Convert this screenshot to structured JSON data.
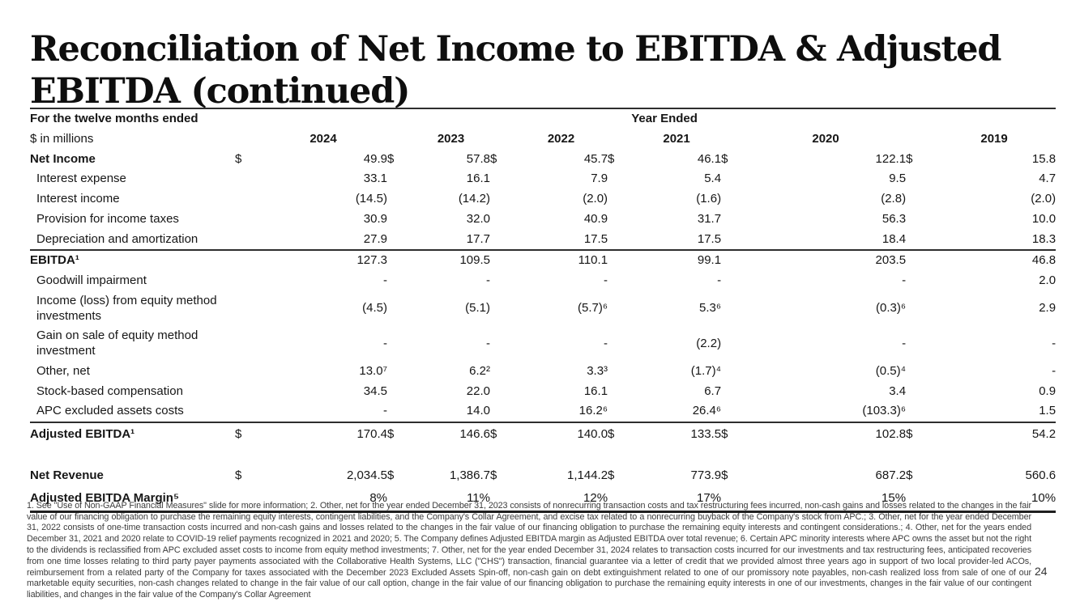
{
  "slide": {
    "title_full": "Reconciliation of Net Income to EBITDA & Adjusted EBITDA (continued)",
    "title_lines": [
      "Reconciliation of Net Income to EBITDA & Adjusted",
      "EBITDA (continued)"
    ],
    "page_number": "24"
  },
  "table": {
    "header": {
      "period_label": "For the twelve months ended",
      "units_label": "$ in millions",
      "year_ended_label": "Year Ended",
      "currency_symbol": "$",
      "years": [
        "2024",
        "2023",
        "2022",
        "2021",
        "2020",
        "2019"
      ]
    },
    "rows": [
      {
        "label": "Net Income",
        "bold": true,
        "dollar": true,
        "values": [
          "49.9",
          "57.8",
          "45.7",
          "46.1",
          "122.1",
          "15.8"
        ]
      },
      {
        "label": "Interest expense",
        "indent": true,
        "values": [
          "33.1",
          "16.1",
          "7.9",
          "5.4",
          "9.5",
          "4.7"
        ]
      },
      {
        "label": "Interest income",
        "indent": true,
        "values": [
          "(14.5)",
          "(14.2)",
          "(2.0)",
          "(1.6)",
          "(2.8)",
          "(2.0)"
        ]
      },
      {
        "label": "Provision for income taxes",
        "indent": true,
        "values": [
          "30.9",
          "32.0",
          "40.9",
          "31.7",
          "56.3",
          "10.0"
        ]
      },
      {
        "label": "Depreciation and amortization",
        "indent": true,
        "values": [
          "27.9",
          "17.7",
          "17.5",
          "17.5",
          "18.4",
          "18.3"
        ]
      },
      {
        "label": "EBITDA¹",
        "bold": true,
        "classes": "rule",
        "values": [
          "127.3",
          "109.5",
          "110.1",
          "99.1",
          "203.5",
          "46.8"
        ]
      },
      {
        "label": "Goodwill impairment",
        "indent": true,
        "values": [
          "-",
          "-",
          "-",
          "-",
          "-",
          "2.0"
        ]
      },
      {
        "label": "Income (loss) from equity method investments",
        "indent": true,
        "values": [
          "(4.5)",
          "(5.1)",
          "(5.7)⁶",
          "5.3⁶",
          "(0.3)⁶",
          "2.9"
        ]
      },
      {
        "label": "Gain on sale of equity method investment",
        "indent": true,
        "values": [
          "-",
          "-",
          "-",
          "(2.2)",
          "-",
          "-"
        ]
      },
      {
        "label": "Other, net",
        "indent": true,
        "values": [
          "13.0⁷",
          "6.2²",
          "3.3³",
          "(1.7)⁴",
          "(0.5)⁴",
          "-"
        ]
      },
      {
        "label": "Stock-based compensation",
        "indent": true,
        "values": [
          "34.5",
          "22.0",
          "16.1",
          "6.7",
          "3.4",
          "0.9"
        ]
      },
      {
        "label": "APC excluded assets costs",
        "indent": true,
        "values": [
          "-",
          "14.0",
          "16.2⁶",
          "26.4⁶",
          "(103.3)⁶",
          "1.5"
        ]
      },
      {
        "label": "Adjusted EBITDA¹",
        "bold": true,
        "dollar": true,
        "classes": "rule total",
        "values": [
          "170.4",
          "146.6",
          "140.0",
          "133.5",
          "102.8",
          "54.2"
        ]
      },
      {
        "type": "spacer"
      },
      {
        "label": "Net Revenue",
        "bold": true,
        "dollar": true,
        "classes": "revenue",
        "values": [
          "2,034.5",
          "1,386.7",
          "1,144.2",
          "773.9",
          "687.2",
          "560.6"
        ]
      },
      {
        "label": "Adjusted EBITDA Margin⁵",
        "bold": true,
        "classes": "margin",
        "values": [
          "8%",
          "11%",
          "12%",
          "17%",
          "15%",
          "10%"
        ]
      }
    ]
  },
  "footnotes": "1. See \"Use of Non-GAAP Financial Measures\" slide for more information; 2. Other, net for the year ended December 31, 2023 consists of nonrecurring transaction costs and tax restructuring fees incurred,  non-cash gains and losses related to the changes in the fair value of our financing obligation to purchase the remaining equity interests, contingent liabilities,  and the Company's Collar Agreement, and excise tax related to a nonrecurring buyback of the Company's stock from APC.; 3. Other, net for the year ended December 31, 2022 consists of one-time transaction costs incurred and non-cash gains and losses related to the changes in the fair value of our financing obligation to purchase the remaining equity interests and contingent considerations.; 4. Other, net for the years ended December 31, 2021 and 2020 relate to COVID-19 relief payments recognized in 2021 and 2020; 5. The Company defines Adjusted EBITDA margin as Adjusted EBITDA over total revenue; 6. Certain APC minority interests where APC owns the asset but not the right to the dividends is reclassified from APC excluded asset costs to income from equity method investments; 7. Other, net for the year ended December 31, 2024 relates to transaction costs incurred for our investments and tax restructuring fees, anticipated recoveries from one time losses relating to third party payer payments associated with the Collaborative Health Systems, LLC (\"CHS\") transaction, financial guarantee via a letter of credit that we provided almost three years ago in support of two local provider-led ACOs, reimbursement from a related party of the Company for taxes associated with the December 2023 Excluded Assets Spin-off, non-cash gain on debt extinguishment related to one of our promissory note payables, non-cash realized loss from sale of one of our marketable equity securities, non-cash changes related to change in the fair value of our call option, change in the fair value of our financing obligation to purchase the remaining equity interests in one of our investments, changes in the fair value of our contingent liabilities, and changes in the fair value of the Company's Collar Agreement"
}
